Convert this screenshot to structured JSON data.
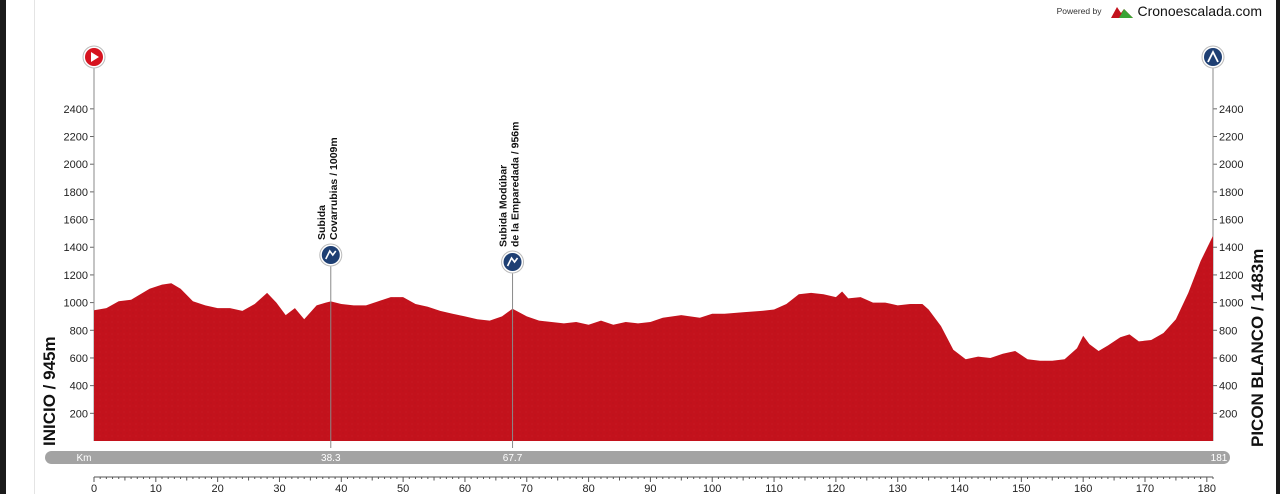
{
  "brand": {
    "powered": "Powered by",
    "name": "Cronoescalada.com"
  },
  "labels": {
    "start": "INICIO / 945m",
    "finish": "PICON BLANCO / 1483m",
    "km": "Km"
  },
  "colors": {
    "profile": "#c3121c",
    "profile_dark": "#9e0e17",
    "bar": "#a3a3a3",
    "start_icon": "#d6131f",
    "climb_icon": "#1e3f73"
  },
  "climbs": [
    {
      "km": 38.3,
      "elev": 1009,
      "line1": "Subida",
      "line2": "Covarrubias / 1009m",
      "km_label": "38.3"
    },
    {
      "km": 67.7,
      "elev": 956,
      "line1": "Subida Modúbar",
      "line2": "de la Emparedada / 956m",
      "km_label": "67.7"
    }
  ],
  "finish_km_label": "181",
  "chart_data": {
    "type": "area",
    "xlabel": "Km",
    "ylabel": "",
    "xlim": [
      0,
      181
    ],
    "ylim": [
      0,
      2500
    ],
    "xticks": [
      0,
      10,
      20,
      30,
      40,
      50,
      60,
      70,
      80,
      90,
      100,
      110,
      120,
      130,
      140,
      150,
      160,
      170,
      180
    ],
    "yticks": [
      200,
      400,
      600,
      800,
      1000,
      1200,
      1400,
      1600,
      1800,
      2000,
      2200,
      2400
    ],
    "series": [
      {
        "x": [
          0,
          2,
          4,
          6,
          9,
          11,
          12.5,
          14,
          16,
          18,
          20,
          22,
          24,
          26,
          28,
          29.5,
          31,
          32.5,
          34,
          36,
          37.5,
          38.3,
          40,
          42,
          44,
          46,
          48,
          50,
          52,
          54,
          56,
          58,
          60,
          62,
          64,
          66,
          67.7,
          70,
          72,
          74,
          76,
          78,
          80,
          82,
          84,
          86,
          88,
          90,
          92,
          95,
          98,
          100,
          102,
          105,
          108,
          110,
          112,
          114,
          116,
          118,
          120,
          121,
          122,
          124,
          126,
          128,
          130,
          132,
          134,
          135,
          137,
          139,
          141,
          143,
          145,
          147,
          149,
          151,
          153,
          155,
          157,
          159,
          160,
          161,
          162.5,
          164,
          166,
          167.5,
          169,
          171,
          173,
          175,
          177,
          179,
          181
        ],
        "y": [
          945,
          960,
          1010,
          1020,
          1100,
          1130,
          1140,
          1100,
          1010,
          980,
          960,
          960,
          940,
          990,
          1070,
          1000,
          910,
          960,
          880,
          980,
          1000,
          1009,
          990,
          980,
          980,
          1010,
          1040,
          1040,
          990,
          970,
          940,
          920,
          900,
          880,
          870,
          900,
          956,
          900,
          870,
          860,
          850,
          860,
          840,
          870,
          840,
          860,
          850,
          860,
          890,
          910,
          890,
          920,
          920,
          930,
          940,
          950,
          990,
          1060,
          1070,
          1060,
          1040,
          1080,
          1030,
          1040,
          1000,
          1000,
          980,
          990,
          990,
          950,
          830,
          660,
          590,
          610,
          600,
          630,
          650,
          590,
          580,
          580,
          590,
          670,
          760,
          700,
          650,
          690,
          750,
          770,
          720,
          730,
          780,
          880,
          1070,
          1300,
          1483
        ]
      }
    ]
  }
}
